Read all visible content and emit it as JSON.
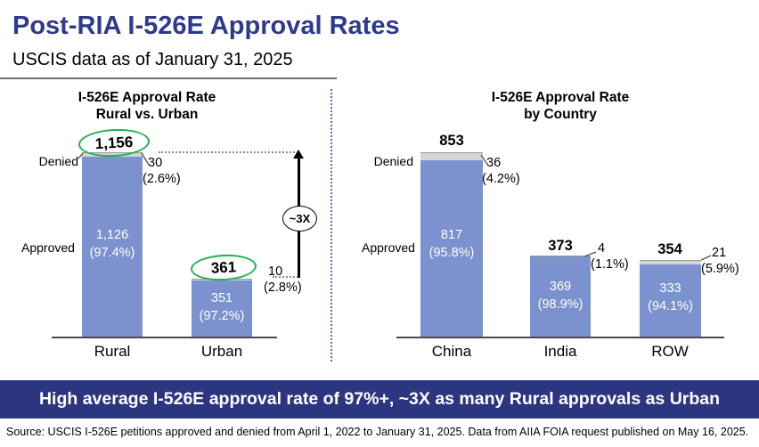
{
  "slide": {
    "title": "Post-RIA I-526E Approval Rates",
    "subtitle": "USCIS data as of January 31, 2025",
    "banner": "High average I-526E approval rate of 97%+, ~3X as many Rural approvals as Urban",
    "source": "Source: USCIS I-526E petitions approved and denied from April 1, 2022 to January 31, 2025. Data from AIIA FOIA request published on May 16, 2025."
  },
  "colors": {
    "title_navy": "#2E3A8C",
    "banner_navy": "#2C3580",
    "bar_blue": "#7B92CE",
    "denied_gray": "#D5D5D5",
    "highlight_green": "#22B14C",
    "divider_blue": "#4472C4"
  },
  "left_chart": {
    "title": "I-526E Approval Rate\nRural vs. Urban",
    "denied_label": "Denied",
    "approved_label": "Approved",
    "ratio_annotation": "~3X",
    "bars": {
      "rural": {
        "category": "Rural",
        "total": "1,156",
        "approved": "1,126\n(97.4%)",
        "denied_count": "30",
        "denied_pct": "(2.6%)"
      },
      "urban": {
        "category": "Urban",
        "total": "361",
        "approved": "351\n(97.2%)",
        "denied_count": "10",
        "denied_pct": "(2.8%)"
      }
    }
  },
  "right_chart": {
    "title": "I-526E Approval Rate\nby Country",
    "denied_label": "Denied",
    "approved_label": "Approved",
    "bars": {
      "china": {
        "category": "China",
        "total": "853",
        "approved": "817\n(95.8%)",
        "denied_count": "36",
        "denied_pct": "(4.2%)"
      },
      "india": {
        "category": "India",
        "total": "373",
        "approved": "369\n(98.9%)",
        "denied_count": "4",
        "denied_pct": "(1.1%)"
      },
      "row": {
        "category": "ROW",
        "total": "354",
        "approved": "333\n(94.1%)",
        "denied_count": "21",
        "denied_pct": "(5.9%)"
      }
    }
  },
  "chart_data": [
    {
      "type": "bar",
      "subtype": "stacked",
      "title": "I-526E Approval Rate Rural vs. Urban",
      "categories": [
        "Rural",
        "Urban"
      ],
      "series": [
        {
          "name": "Approved",
          "values": [
            1126,
            351
          ],
          "pct": [
            "97.4%",
            "97.2%"
          ]
        },
        {
          "name": "Denied",
          "values": [
            30,
            10
          ],
          "pct": [
            "2.6%",
            "2.8%"
          ]
        }
      ],
      "totals": [
        1156,
        361
      ],
      "ylim": [
        0,
        1156
      ],
      "grid": false,
      "legend": "none",
      "annotations": [
        "totals 1,156 and 361 circled in green",
        "~3X vertical arrow comparing Rural total vs Urban total"
      ]
    },
    {
      "type": "bar",
      "subtype": "stacked",
      "title": "I-526E Approval Rate by Country",
      "categories": [
        "China",
        "India",
        "ROW"
      ],
      "series": [
        {
          "name": "Approved",
          "values": [
            817,
            369,
            333
          ],
          "pct": [
            "95.8%",
            "98.9%",
            "94.1%"
          ]
        },
        {
          "name": "Denied",
          "values": [
            36,
            4,
            21
          ],
          "pct": [
            "4.2%",
            "1.1%",
            "5.9%"
          ]
        }
      ],
      "totals": [
        853,
        373,
        354
      ],
      "ylim": [
        0,
        853
      ],
      "grid": false,
      "legend": "none"
    }
  ]
}
